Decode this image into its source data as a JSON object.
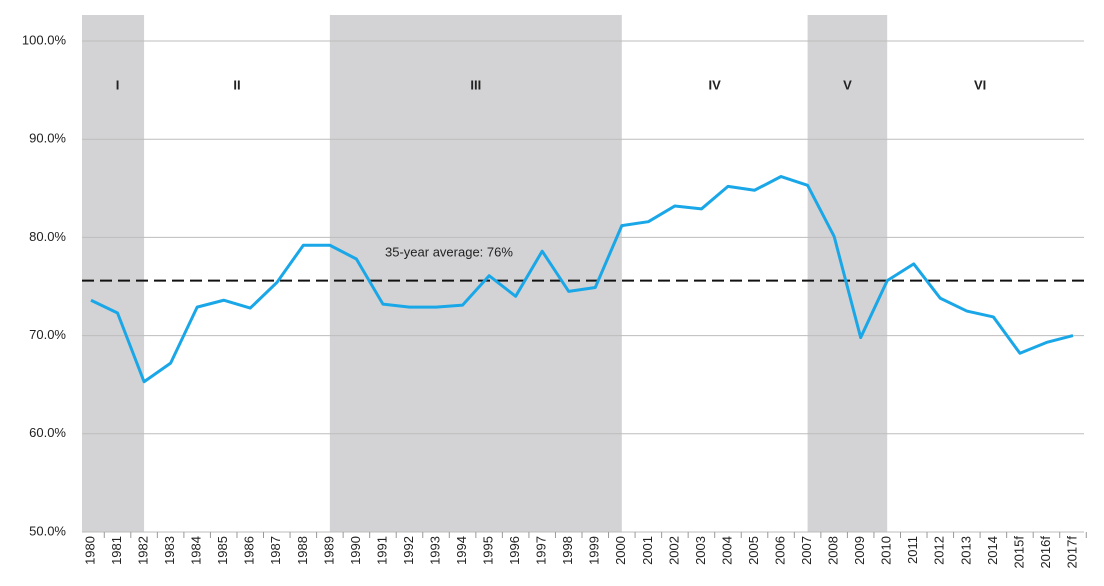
{
  "chart_data": {
    "type": "line",
    "categories": [
      "1980",
      "1981",
      "1982",
      "1983",
      "1984",
      "1985",
      "1986",
      "1987",
      "1988",
      "1989",
      "1990",
      "1991",
      "1992",
      "1993",
      "1994",
      "1995",
      "1996",
      "1997",
      "1998",
      "1999",
      "2000",
      "2001",
      "2002",
      "2003",
      "2004",
      "2005",
      "2006",
      "2007",
      "2008",
      "2009",
      "2010",
      "2011",
      "2012",
      "2013",
      "2014",
      "2015f",
      "2016f",
      "2017f"
    ],
    "series": [
      {
        "color": "#1aa7e8",
        "values": [
          73.6,
          72.3,
          65.3,
          67.2,
          72.9,
          73.6,
          72.8,
          75.4,
          79.2,
          79.2,
          77.8,
          73.2,
          72.9,
          72.9,
          73.1,
          76.1,
          74.0,
          78.6,
          74.5,
          74.9,
          81.2,
          81.6,
          83.2,
          82.9,
          85.2,
          84.8,
          86.2,
          85.3,
          80.1,
          69.8,
          75.6,
          77.3,
          73.8,
          72.5,
          71.9,
          68.2,
          69.3,
          70.0
        ]
      }
    ],
    "ylim": [
      50,
      100
    ],
    "yticks": [
      {
        "value": 50,
        "label": "50.0%"
      },
      {
        "value": 60,
        "label": "60.0%"
      },
      {
        "value": 70,
        "label": "70.0%"
      },
      {
        "value": 80,
        "label": "80.0%"
      },
      {
        "value": 90,
        "label": "90.0%"
      },
      {
        "value": 100,
        "label": "100.0%"
      }
    ],
    "grid": true,
    "average": {
      "value": 75.6,
      "label": "35-year average: 76%"
    },
    "periods": [
      {
        "label": "I",
        "start": "1980",
        "end": "1982",
        "shaded": true
      },
      {
        "label": "II",
        "start": "1982",
        "end": "1989",
        "shaded": false
      },
      {
        "label": "III",
        "start": "1989",
        "end": "2000",
        "shaded": true
      },
      {
        "label": "IV",
        "start": "2000",
        "end": "2007",
        "shaded": false
      },
      {
        "label": "V",
        "start": "2007",
        "end": "2010",
        "shaded": true
      },
      {
        "label": "VI",
        "start": "2010",
        "end": "2017f",
        "shaded": false
      }
    ]
  }
}
